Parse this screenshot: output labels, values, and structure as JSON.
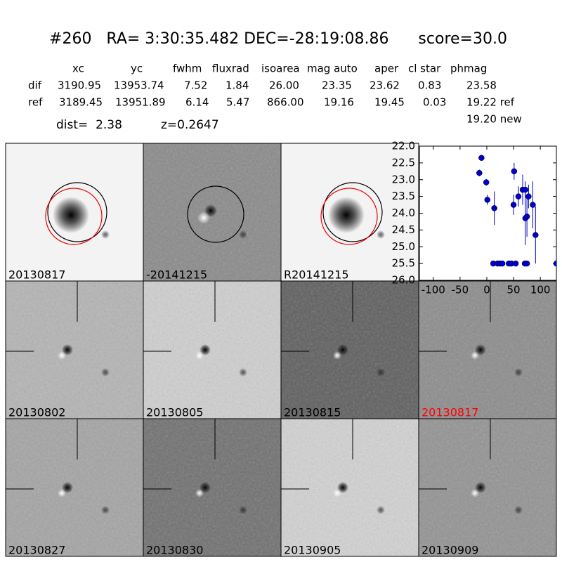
{
  "header": {
    "title": "#260   RA= 3:30:35.482 DEC=-28:19:08.86      score=30.0",
    "dist": "dist=  2.38",
    "z": "z=0.2647"
  },
  "table": {
    "columns": [
      "xc",
      "yc",
      "fwhm",
      "fluxrad",
      "isoarea",
      "mag auto",
      "aper",
      "cl star",
      "phmag"
    ],
    "rows": [
      [
        "dif",
        "3190.95",
        "13953.74",
        "7.52",
        "1.84",
        "26.00",
        "23.35",
        "23.62",
        "0.83",
        "23.58"
      ],
      [
        "ref",
        "3189.45",
        "13951.89",
        "6.14",
        "5.47",
        "866.00",
        "19.16",
        "19.45",
        "0.03",
        "19.22 ref"
      ]
    ],
    "extra": "19.20 new"
  },
  "stamps": [
    {
      "label": "20130817"
    },
    {
      "label": "-20141215"
    },
    {
      "label": "R20141215"
    },
    {
      "label": "20130802"
    },
    {
      "label": "20130805"
    },
    {
      "label": "20130815"
    },
    {
      "label": "20130817",
      "color": "#ff0000"
    },
    {
      "label": "20130827"
    },
    {
      "label": "20130830"
    },
    {
      "label": "20130905"
    },
    {
      "label": "20130909"
    }
  ],
  "chart_data": {
    "type": "scatter",
    "color": "#0000cc",
    "x": [
      -14,
      -10,
      -1,
      1,
      14,
      12,
      20,
      25,
      29,
      41,
      46,
      54,
      50,
      51,
      59,
      67,
      72,
      72,
      75,
      78,
      86,
      91,
      71,
      75,
      130
    ],
    "values": [
      22.8,
      22.35,
      23.08,
      23.6,
      23.85,
      25.5,
      25.5,
      25.5,
      25.5,
      25.5,
      25.5,
      25.5,
      23.75,
      22.75,
      23.5,
      23.3,
      23.3,
      24.15,
      24.1,
      23.5,
      23.75,
      24.65,
      25.5,
      25.5,
      25.5
    ],
    "errors": [
      0.1,
      0.05,
      0.1,
      0.15,
      0.5,
      0,
      0,
      0,
      0,
      0,
      0,
      0,
      0.3,
      0.25,
      0.3,
      0.45,
      0.25,
      0.8,
      0.6,
      0.35,
      0.7,
      0.85,
      0,
      0,
      0
    ],
    "xlim": [
      -126,
      130
    ],
    "xticks": [
      -100,
      -50,
      0,
      50,
      100
    ],
    "ylim": [
      22,
      26
    ],
    "invert_y": true,
    "yticks": [
      {
        "value": 22,
        "label": "22.0"
      },
      22.5,
      {
        "value": 23,
        "label": "23.0"
      },
      23.5,
      {
        "value": 24,
        "label": "24.0"
      },
      24.5,
      {
        "value": 25,
        "label": "25.0"
      },
      25.5,
      {
        "value": 26,
        "label": "26.0"
      }
    ]
  }
}
